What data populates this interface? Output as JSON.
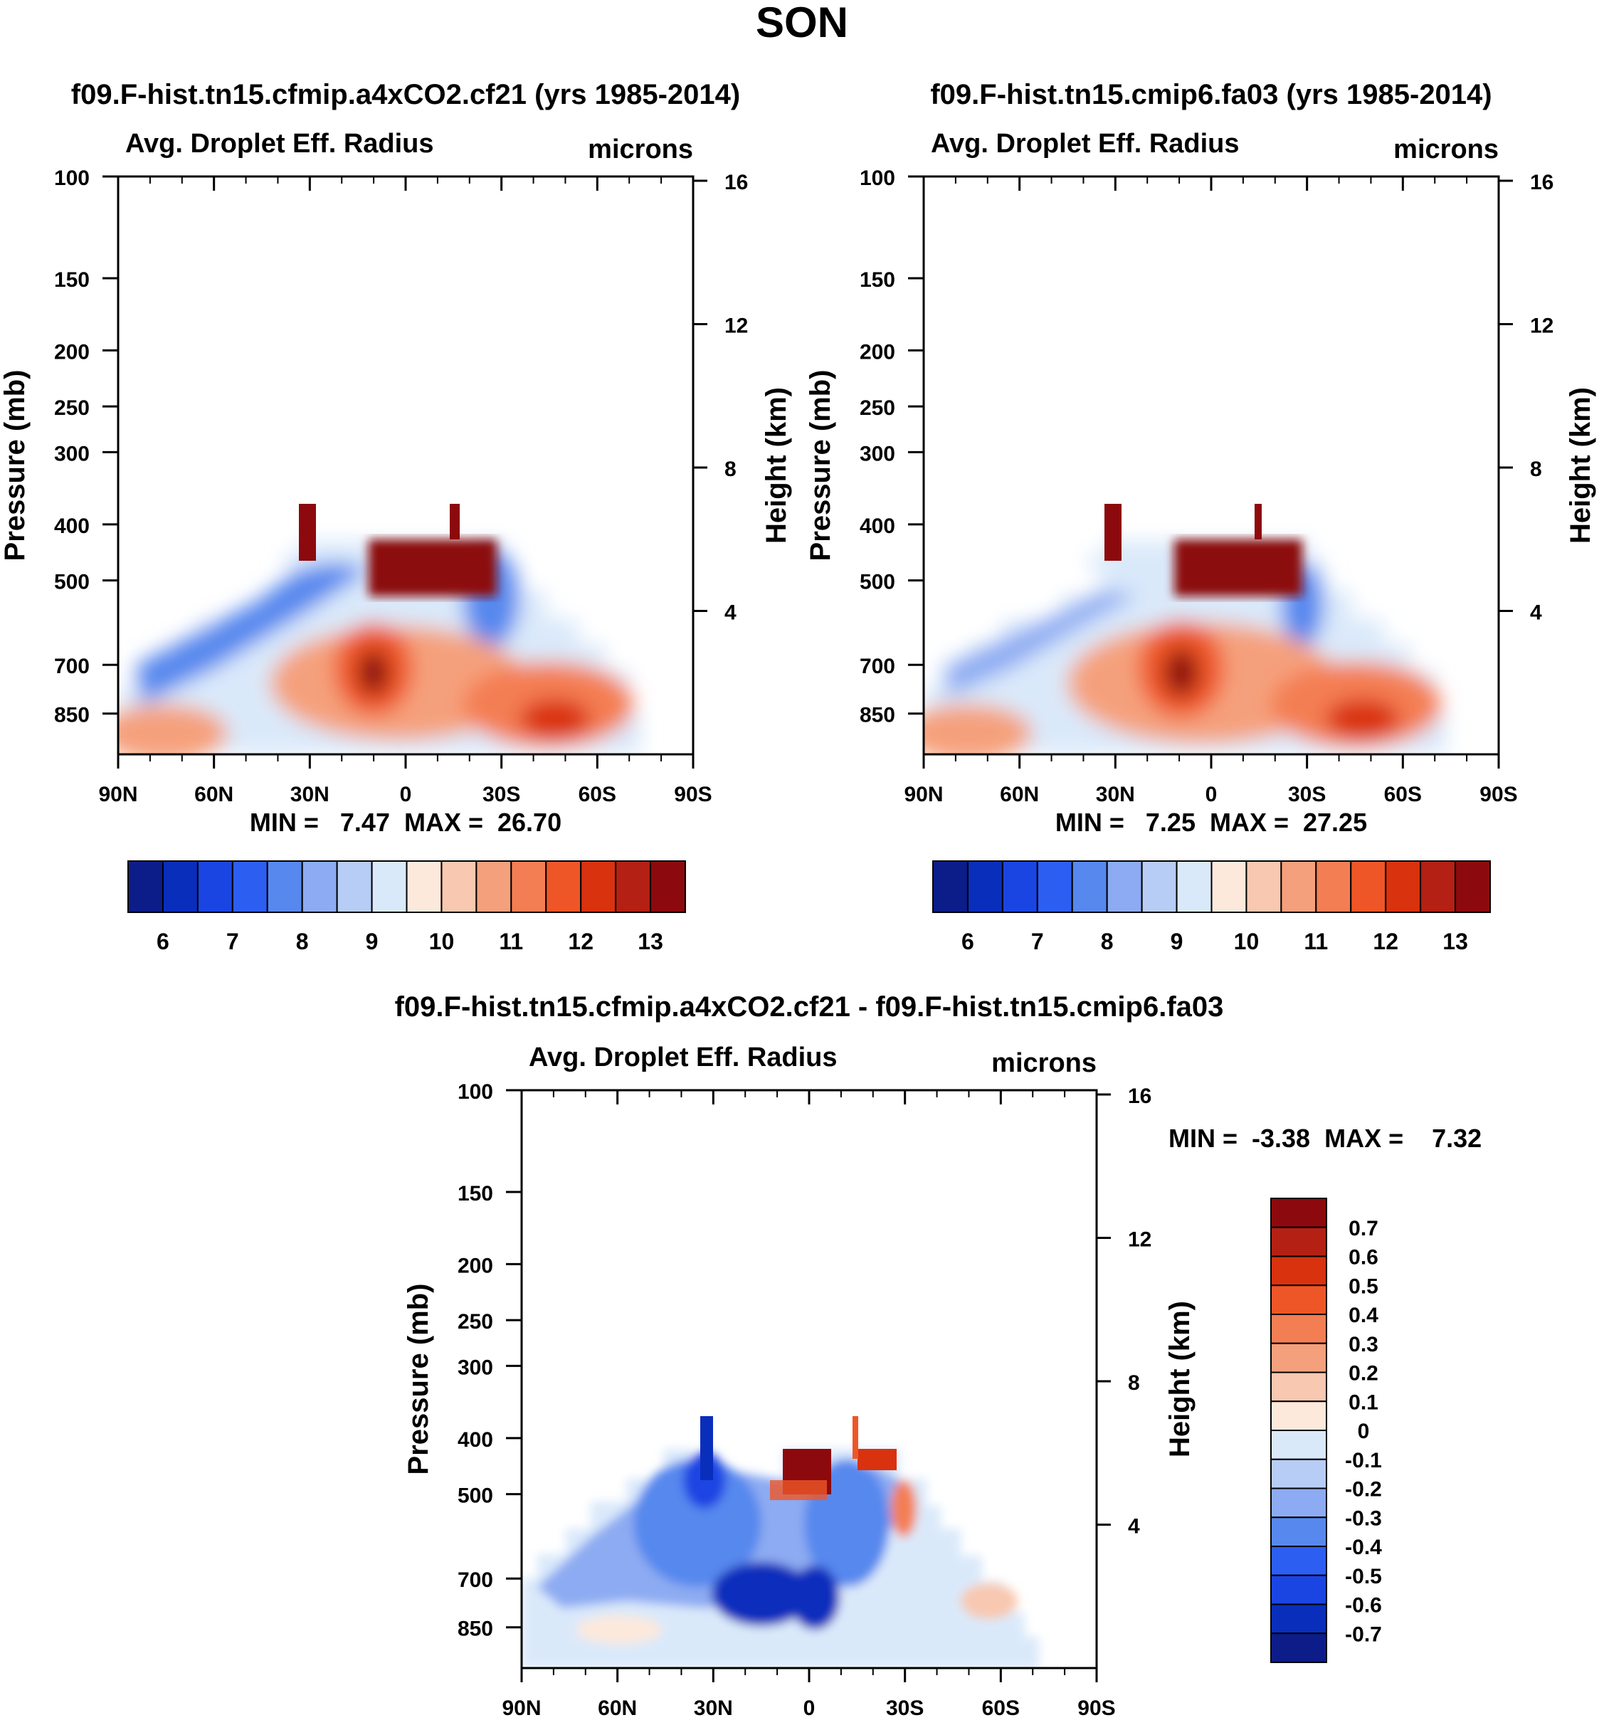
{
  "figure_title": "SON",
  "chart_data": [
    {
      "type": "contour",
      "title": "f09.F-hist.tn15.cfmip.a4xCO2.cf21 (yrs 1985-2014)",
      "subtitle_left": "Avg. Droplet Eff. Radius",
      "subtitle_right": "microns",
      "ylabel": "Pressure (mb)",
      "y2label": "Height (km)",
      "xticks": [
        "90N",
        "60N",
        "30N",
        "0",
        "30S",
        "60S",
        "90S"
      ],
      "yticks": [
        "100",
        "150",
        "200",
        "250",
        "300",
        "400",
        "500",
        "700",
        "850"
      ],
      "y2ticks": [
        "16",
        "12",
        "8",
        "4"
      ],
      "min_max_text": "MIN =   7.47  MAX =  26.70",
      "min": 7.47,
      "max": 26.7,
      "colorbar": {
        "orientation": "horizontal",
        "colors": [
          "#0c1d89",
          "#0a2ebc",
          "#1a45e3",
          "#2d5ef2",
          "#5788ee",
          "#8dabf2",
          "#b7cdf5",
          "#dae9fa",
          "#fde9dc",
          "#f8c8b0",
          "#f5a07c",
          "#f47e53",
          "#ef5627",
          "#d9320f",
          "#b42013",
          "#8c0a0d"
        ],
        "labels": [
          "6",
          "7",
          "8",
          "9",
          "10",
          "11",
          "12",
          "13"
        ]
      }
    },
    {
      "type": "contour",
      "title": "f09.F-hist.tn15.cmip6.fa03 (yrs 1985-2014)",
      "subtitle_left": "Avg. Droplet Eff. Radius",
      "subtitle_right": "microns",
      "ylabel": "Pressure (mb)",
      "y2label": "Height (km)",
      "xticks": [
        "90N",
        "60N",
        "30N",
        "0",
        "30S",
        "60S",
        "90S"
      ],
      "yticks": [
        "100",
        "150",
        "200",
        "250",
        "300",
        "400",
        "500",
        "700",
        "850"
      ],
      "y2ticks": [
        "16",
        "12",
        "8",
        "4"
      ],
      "min_max_text": "MIN =   7.25  MAX =  27.25",
      "min": 7.25,
      "max": 27.25,
      "colorbar": {
        "orientation": "horizontal",
        "colors": [
          "#0c1d89",
          "#0a2ebc",
          "#1a45e3",
          "#2d5ef2",
          "#5788ee",
          "#8dabf2",
          "#b7cdf5",
          "#dae9fa",
          "#fde9dc",
          "#f8c8b0",
          "#f5a07c",
          "#f47e53",
          "#ef5627",
          "#d9320f",
          "#b42013",
          "#8c0a0d"
        ],
        "labels": [
          "6",
          "7",
          "8",
          "9",
          "10",
          "11",
          "12",
          "13"
        ]
      }
    },
    {
      "type": "contour",
      "title": "f09.F-hist.tn15.cfmip.a4xCO2.cf21 - f09.F-hist.tn15.cmip6.fa03",
      "subtitle_left": "Avg. Droplet Eff. Radius",
      "subtitle_right": "microns",
      "ylabel": "Pressure (mb)",
      "y2label": "Height (km)",
      "xticks": [
        "90N",
        "60N",
        "30N",
        "0",
        "30S",
        "60S",
        "90S"
      ],
      "yticks": [
        "100",
        "150",
        "200",
        "250",
        "300",
        "400",
        "500",
        "700",
        "850"
      ],
      "y2ticks": [
        "16",
        "12",
        "8",
        "4"
      ],
      "min_max_text": "MIN =  -3.38  MAX =    7.32",
      "min": -3.38,
      "max": 7.32,
      "colorbar": {
        "orientation": "vertical",
        "colors": [
          "#8c0a0d",
          "#b42013",
          "#d9320f",
          "#ef5627",
          "#f47e53",
          "#f5a07c",
          "#f8c8b0",
          "#fde9dc",
          "#dae9fa",
          "#b7cdf5",
          "#8dabf2",
          "#5788ee",
          "#2d5ef2",
          "#1a45e3",
          "#0a2ebc",
          "#0c1d89"
        ],
        "labels": [
          "0.7",
          "0.6",
          "0.5",
          "0.4",
          "0.3",
          "0.2",
          "0.1",
          "0",
          "-0.1",
          "-0.2",
          "-0.3",
          "-0.4",
          "-0.5",
          "-0.6",
          "-0.7"
        ]
      }
    }
  ]
}
